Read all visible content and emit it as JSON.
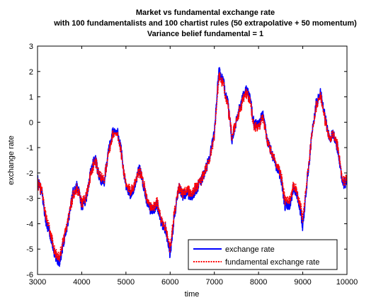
{
  "chart_data": {
    "type": "line",
    "title": [
      "Market vs fundamental exchange rate",
      "with 100 fundamentalists and 100 chartist rules (50 extrapolative + 50 momentum)",
      "Variance belief fundamental = 1"
    ],
    "xlabel": "time",
    "ylabel": "exchange rate",
    "xlim": [
      3000,
      10000
    ],
    "ylim": [
      -6,
      3
    ],
    "xticks": [
      3000,
      4000,
      5000,
      6000,
      7000,
      8000,
      9000,
      10000
    ],
    "yticks": [
      3,
      2,
      1,
      0,
      -1,
      -2,
      -3,
      -4,
      -5,
      -6
    ],
    "legend_position": "bottom-right",
    "grid": false,
    "series": [
      {
        "name": "exchange rate",
        "color": "#0000ff",
        "style": "solid",
        "noise": 0.22,
        "x": [
          3000,
          3100,
          3200,
          3300,
          3400,
          3500,
          3600,
          3700,
          3800,
          3900,
          4000,
          4100,
          4200,
          4300,
          4400,
          4500,
          4600,
          4700,
          4800,
          4900,
          5000,
          5100,
          5200,
          5300,
          5400,
          5500,
          5600,
          5700,
          5800,
          5900,
          6000,
          6100,
          6200,
          6300,
          6400,
          6500,
          6600,
          6700,
          6800,
          6900,
          7000,
          7100,
          7200,
          7300,
          7400,
          7500,
          7600,
          7700,
          7800,
          7900,
          8000,
          8100,
          8200,
          8300,
          8400,
          8500,
          8600,
          8700,
          8800,
          8900,
          9000,
          9100,
          9200,
          9300,
          9400,
          9500,
          9600,
          9700,
          9800,
          9900
        ],
        "y": [
          -2.3,
          -2.8,
          -4.0,
          -4.5,
          -5.3,
          -5.5,
          -4.6,
          -3.8,
          -2.8,
          -2.5,
          -3.3,
          -3.0,
          -2.0,
          -1.4,
          -2.2,
          -2.4,
          -1.2,
          -0.4,
          -0.3,
          -1.2,
          -2.6,
          -2.8,
          -2.5,
          -1.8,
          -2.5,
          -3.3,
          -3.5,
          -3.2,
          -4.0,
          -4.2,
          -5.2,
          -3.6,
          -2.6,
          -2.9,
          -2.8,
          -2.9,
          -2.6,
          -2.3,
          -1.9,
          -1.3,
          -0.4,
          2.0,
          1.6,
          0.8,
          -0.7,
          0.1,
          0.7,
          1.3,
          1.0,
          -0.1,
          -0.1,
          0.3,
          -0.7,
          -1.2,
          -1.7,
          -2.1,
          -3.3,
          -3.3,
          -2.5,
          -3.0,
          -4.1,
          -2.3,
          -0.6,
          0.7,
          1.2,
          0.2,
          -0.6,
          -0.5,
          -1.1,
          -2.4
        ]
      },
      {
        "name": "fundamental exchange rate",
        "color": "#ff0000",
        "style": "dotted",
        "noise": 0.08,
        "x": [
          3000,
          3100,
          3200,
          3300,
          3400,
          3500,
          3600,
          3700,
          3800,
          3900,
          4000,
          4100,
          4200,
          4300,
          4400,
          4500,
          4600,
          4700,
          4800,
          4900,
          5000,
          5100,
          5200,
          5300,
          5400,
          5500,
          5600,
          5700,
          5800,
          5900,
          6000,
          6100,
          6200,
          6300,
          6400,
          6500,
          6600,
          6700,
          6800,
          6900,
          7000,
          7100,
          7200,
          7300,
          7400,
          7500,
          7600,
          7700,
          7800,
          7900,
          8000,
          8100,
          8200,
          8300,
          8400,
          8500,
          8600,
          8700,
          8800,
          8900,
          9000,
          9100,
          9200,
          9300,
          9400,
          9500,
          9600,
          9700,
          9800,
          9900
        ],
        "y": [
          -2.4,
          -2.7,
          -3.8,
          -4.4,
          -5.2,
          -5.3,
          -4.5,
          -3.7,
          -2.9,
          -2.6,
          -3.2,
          -2.9,
          -2.1,
          -1.5,
          -2.1,
          -2.3,
          -1.3,
          -0.5,
          -0.4,
          -1.3,
          -2.5,
          -2.7,
          -2.4,
          -1.9,
          -2.4,
          -3.2,
          -3.4,
          -3.1,
          -3.9,
          -4.1,
          -5.0,
          -3.5,
          -2.6,
          -2.8,
          -2.7,
          -2.8,
          -2.5,
          -2.3,
          -1.9,
          -1.4,
          -0.5,
          1.8,
          1.5,
          0.7,
          -0.6,
          0.1,
          0.6,
          1.2,
          0.9,
          -0.2,
          -0.2,
          0.2,
          -0.7,
          -1.2,
          -1.6,
          -2.0,
          -3.1,
          -3.1,
          -2.4,
          -2.9,
          -3.8,
          -2.2,
          -0.6,
          0.6,
          1.1,
          0.1,
          -0.6,
          -0.5,
          -1.0,
          -2.3
        ]
      }
    ]
  }
}
